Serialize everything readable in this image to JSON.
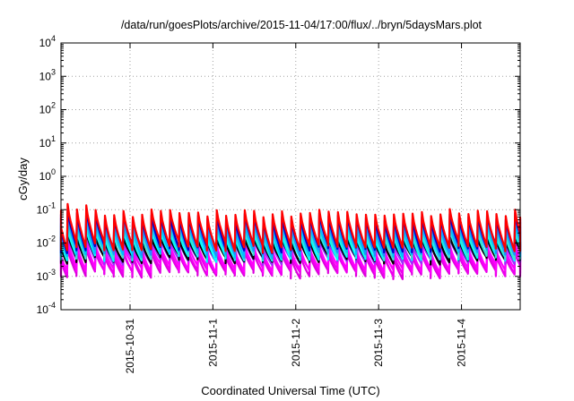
{
  "chart_data": {
    "type": "line",
    "title": "/data/run/goesPlots/archive/2015-11-04/17:00/flux/../bryn/5daysMars.plot",
    "xlabel": "Coordinated Universal Time (UTC)",
    "ylabel": "cGy/day",
    "yscale": "log",
    "ylim": [
      0.0001,
      10000
    ],
    "xlim": [
      "2015-10-30T04:00",
      "2015-11-04T17:00"
    ],
    "grid": true,
    "legend": "none",
    "yticks": [
      {
        "base": "10",
        "exp": "-4",
        "value": 0.0001
      },
      {
        "base": "10",
        "exp": "-3",
        "value": 0.001
      },
      {
        "base": "10",
        "exp": "-2",
        "value": 0.01
      },
      {
        "base": "10",
        "exp": "-1",
        "value": 0.1
      },
      {
        "base": "10",
        "exp": "0",
        "value": 1
      },
      {
        "base": "10",
        "exp": "1",
        "value": 10
      },
      {
        "base": "10",
        "exp": "2",
        "value": 100
      },
      {
        "base": "10",
        "exp": "3",
        "value": 1000
      },
      {
        "base": "10",
        "exp": "4",
        "value": 10000
      }
    ],
    "xticks": [
      {
        "label": "2015-10-31",
        "value": "2015-10-31T00:00"
      },
      {
        "label": "2015-11-1",
        "value": "2015-11-01T00:00"
      },
      {
        "label": "2015-11-2",
        "value": "2015-11-02T00:00"
      },
      {
        "label": "2015-11-3",
        "value": "2015-11-03T00:00"
      },
      {
        "label": "2015-11-4",
        "value": "2015-11-04T00:00"
      }
    ],
    "cycle_period_hours": 2.7,
    "series": [
      {
        "color": "#ff0000",
        "peak": 0.08,
        "trough": 0.008,
        "noise_seed": 1
      },
      {
        "color": "#0000cc",
        "peak": 0.062,
        "trough": 0.0072,
        "noise_seed": 2
      },
      {
        "color": "#1e90ff",
        "peak": 0.05,
        "trough": 0.0062,
        "noise_seed": 3
      },
      {
        "color": "#00bfff",
        "peak": 0.035,
        "trough": 0.0052,
        "noise_seed": 4
      },
      {
        "color": "#40e0d0",
        "peak": 0.026,
        "trough": 0.0045,
        "noise_seed": 5
      },
      {
        "color": "#00ffff",
        "peak": 0.019,
        "trough": 0.0039,
        "noise_seed": 6
      },
      {
        "color": "#000000",
        "peak": 0.013,
        "trough": 0.0034,
        "noise_seed": 7
      },
      {
        "color": "#9b30ff",
        "peak": 0.011,
        "trough": 0.003,
        "noise_seed": 8
      },
      {
        "color": "#ff00ff",
        "peak": 0.0075,
        "trough": 0.0018,
        "noise_seed": 9
      },
      {
        "color": "#ee00ee",
        "peak": 0.0058,
        "trough": 0.00145,
        "noise_seed": 10
      },
      {
        "color": "#dd00dd",
        "peak": 0.0046,
        "trough": 0.0012,
        "noise_seed": 11
      }
    ]
  }
}
